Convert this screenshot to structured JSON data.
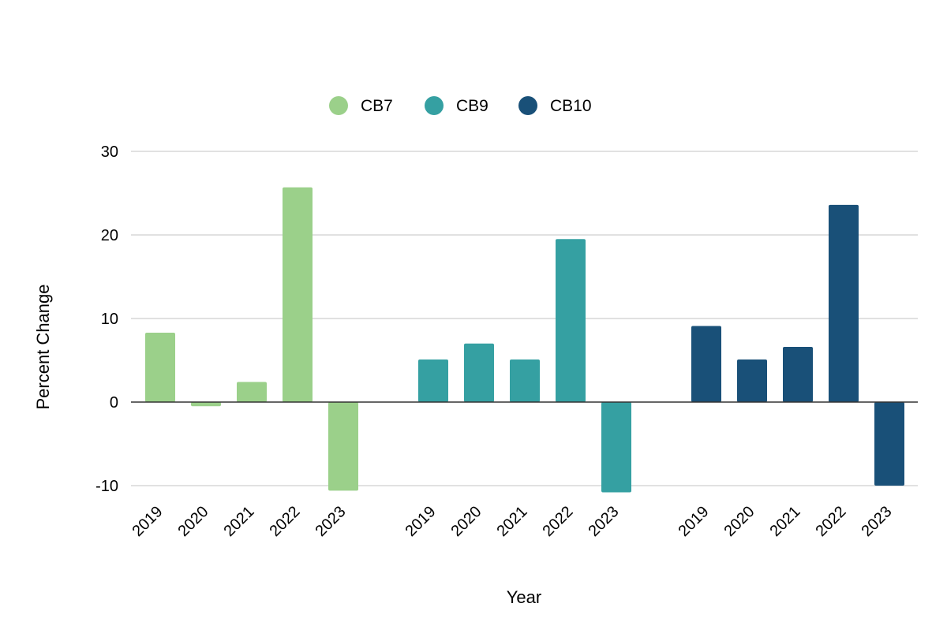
{
  "chart_data": {
    "type": "bar",
    "xlabel": "Year",
    "ylabel": "Percent Change",
    "ylim": [
      -10,
      30
    ],
    "yticks": [
      -10,
      0,
      10,
      20,
      30
    ],
    "grid": true,
    "legend_position": "top-center",
    "categories": [
      "2019",
      "2020",
      "2021",
      "2022",
      "2023"
    ],
    "series": [
      {
        "name": "CB7",
        "color": "#9bd08a",
        "values": [
          8.3,
          -0.5,
          2.4,
          25.7,
          -10.6
        ]
      },
      {
        "name": "CB9",
        "color": "#35a0a2",
        "values": [
          5.1,
          7.0,
          5.1,
          19.5,
          -10.8
        ]
      },
      {
        "name": "CB10",
        "color": "#195078",
        "values": [
          9.1,
          5.1,
          6.6,
          23.6,
          -10.0
        ]
      }
    ]
  }
}
